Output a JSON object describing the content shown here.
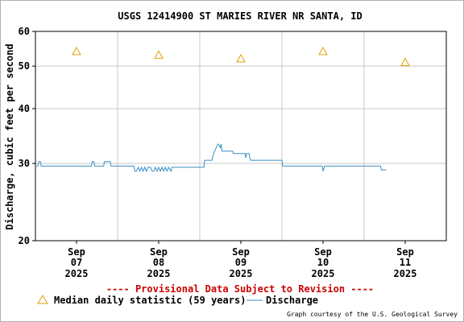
{
  "chart_data": {
    "type": "line",
    "title": "USGS 12414900 ST MARIES RIVER NR SANTA, ID",
    "ylabel": "Discharge, cubic feet per second",
    "xlabel": "",
    "y_scale": "log",
    "ylim": [
      20,
      60
    ],
    "y_ticks": [
      "20",
      "30",
      "40",
      "50",
      "60"
    ],
    "y_tick_values": [
      20,
      30,
      40,
      50,
      60
    ],
    "x_range_days": [
      6.5,
      11.5
    ],
    "x_ticks": [
      {
        "day": 7,
        "month": "Sep",
        "date": "07",
        "year": "2025"
      },
      {
        "day": 8,
        "month": "Sep",
        "date": "08",
        "year": "2025"
      },
      {
        "day": 9,
        "month": "Sep",
        "date": "09",
        "year": "2025"
      },
      {
        "day": 10,
        "month": "Sep",
        "date": "10",
        "year": "2025"
      },
      {
        "day": 11,
        "month": "Sep",
        "date": "11",
        "year": "2025"
      }
    ],
    "grid": true,
    "colors": {
      "median": "#e0a000",
      "discharge": "#3a8fc4",
      "grid": "#c8c8c8",
      "provisional": "#cc0000"
    },
    "series": [
      {
        "name": "Median daily statistic (59 years)",
        "marker": "triangle",
        "x": [
          7,
          8,
          9,
          10,
          11
        ],
        "y": [
          54,
          53,
          52,
          54,
          51
        ]
      },
      {
        "name": "Discharge",
        "marker": "line",
        "x": [
          6.5,
          6.53,
          6.54,
          6.56,
          6.57,
          6.6,
          7.18,
          7.19,
          7.21,
          7.22,
          7.33,
          7.34,
          7.36,
          7.4,
          7.41,
          7.42,
          7.7,
          7.71,
          7.73,
          7.75,
          7.77,
          7.79,
          7.81,
          7.83,
          7.85,
          7.87,
          7.9,
          7.92,
          7.94,
          7.96,
          7.98,
          8.0,
          8.02,
          8.04,
          8.06,
          8.08,
          8.1,
          8.12,
          8.15,
          8.16,
          8.55,
          8.56,
          8.65,
          8.66,
          8.68,
          8.7,
          8.72,
          8.73,
          8.75,
          8.76,
          8.77,
          8.9,
          8.91,
          9.05,
          9.06,
          9.07,
          9.1,
          9.11,
          9.12,
          9.5,
          9.51,
          9.99,
          10.0,
          10.02,
          10.03,
          10.7,
          10.71,
          10.77
        ],
        "y": [
          29.6,
          29.6,
          30.3,
          30.3,
          29.6,
          29.6,
          29.6,
          30.3,
          30.3,
          29.6,
          29.6,
          30.3,
          30.3,
          30.3,
          30.3,
          29.6,
          29.6,
          28.8,
          28.8,
          29.4,
          28.8,
          29.4,
          28.8,
          29.4,
          28.8,
          29.4,
          29.4,
          28.8,
          28.8,
          29.4,
          28.8,
          29.4,
          28.8,
          29.4,
          28.8,
          29.4,
          28.8,
          29.4,
          28.8,
          29.4,
          29.4,
          30.5,
          30.5,
          31.2,
          32.0,
          32.6,
          33.2,
          33.2,
          32.6,
          33.2,
          32.0,
          32.0,
          31.6,
          31.6,
          30.9,
          31.6,
          31.6,
          30.9,
          30.5,
          30.5,
          29.6,
          29.6,
          28.8,
          29.6,
          29.6,
          29.6,
          29.0,
          29.0
        ]
      }
    ],
    "provisional_note": "---- Provisional Data Subject to Revision ----",
    "credit": "Graph courtesy of the U.S. Geological Survey"
  }
}
